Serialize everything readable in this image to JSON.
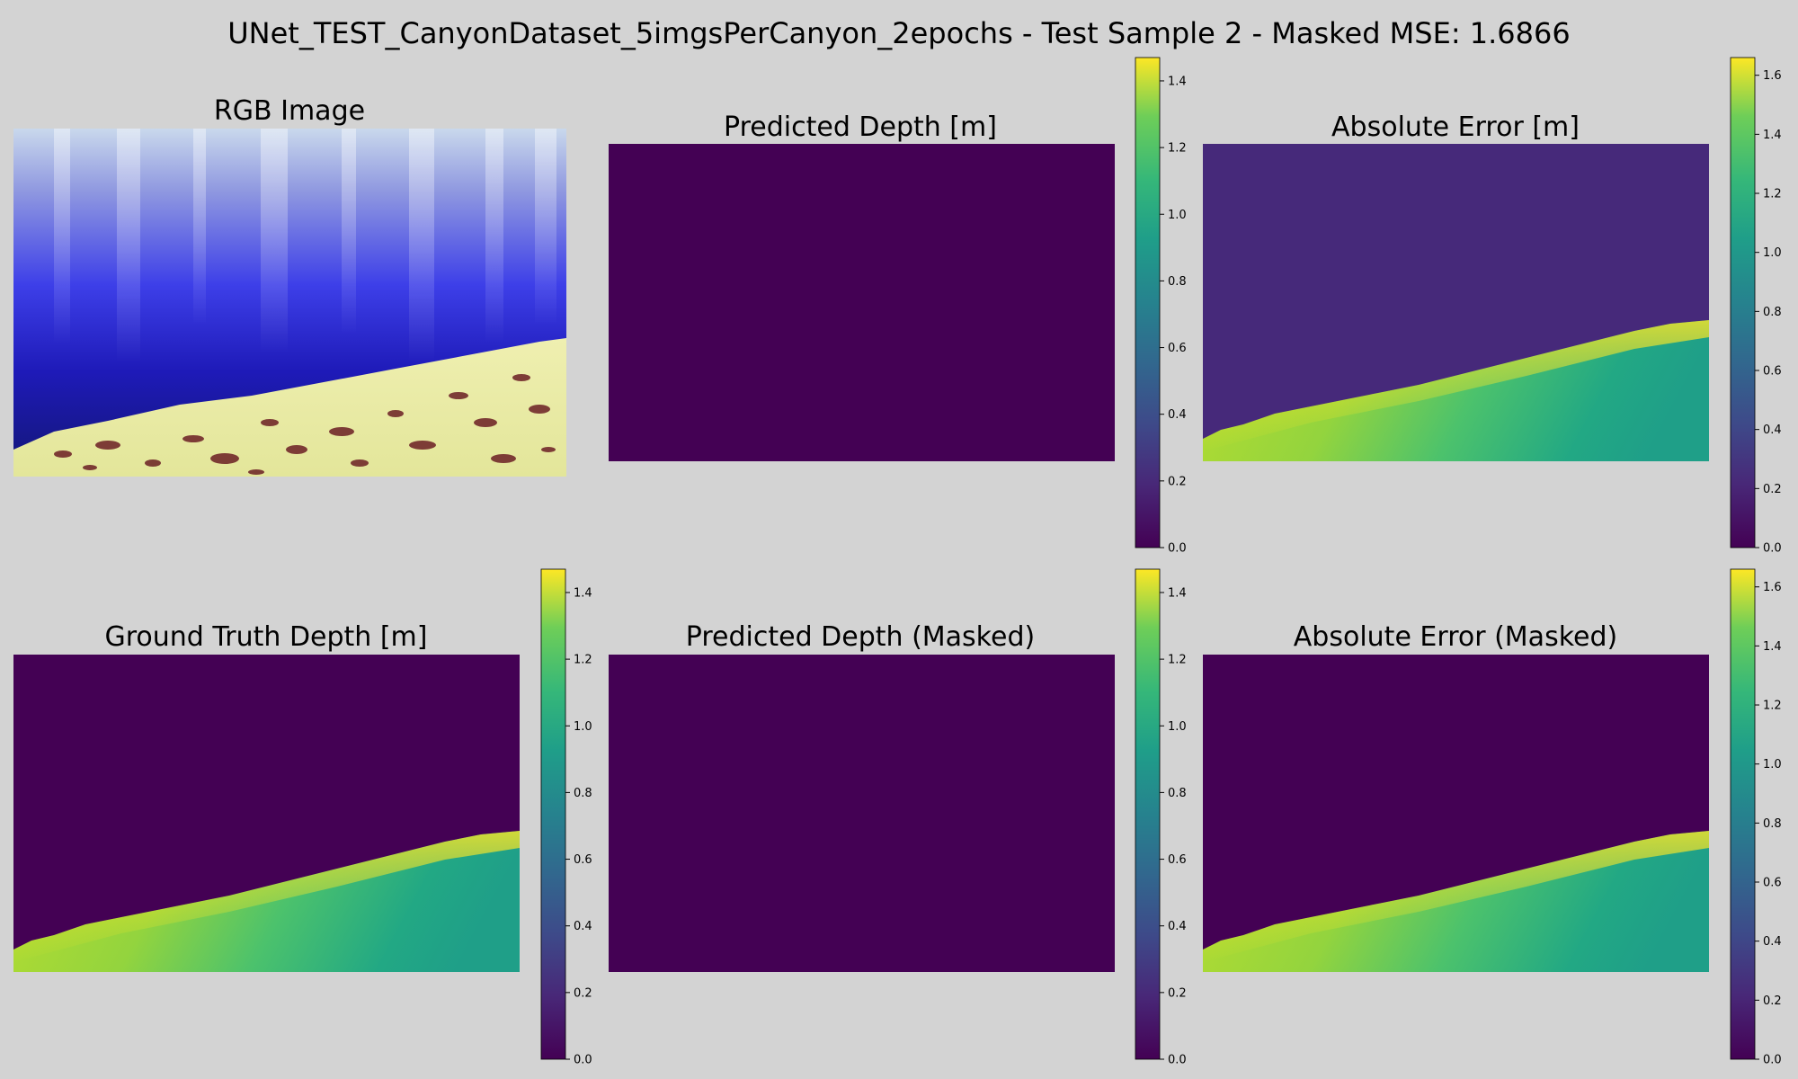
{
  "figure": {
    "suptitle": "UNet_TEST_CanyonDataset_5imgsPerCanyon_2epochs - Test Sample 2 - Masked MSE: 1.6866",
    "background": "#d3d3d3"
  },
  "chart_data": [
    {
      "type": "heatmap",
      "title": "RGB Image",
      "image": "rgb-underwater-canyon-photo",
      "colorbar": null
    },
    {
      "type": "heatmap",
      "title": "Predicted Depth [m]",
      "field": "constant-zero",
      "colormap": "viridis",
      "colorbar": {
        "range": [
          0,
          1.47
        ],
        "ticks": [
          "0.0",
          "0.2",
          "0.4",
          "0.6",
          "0.8",
          "1.0",
          "1.2",
          "1.4"
        ]
      }
    },
    {
      "type": "heatmap",
      "title": "Absolute Error [m]",
      "field": "error-full",
      "colormap": "viridis",
      "background_value": 0.27,
      "colorbar": {
        "range": [
          0,
          1.66
        ],
        "ticks": [
          "0.0",
          "0.2",
          "0.4",
          "0.6",
          "0.8",
          "1.0",
          "1.2",
          "1.4",
          "1.6"
        ]
      }
    },
    {
      "type": "heatmap",
      "title": "Ground Truth Depth [m]",
      "field": "seafloor-depth",
      "colormap": "viridis",
      "colorbar": {
        "range": [
          0,
          1.47
        ],
        "ticks": [
          "0.0",
          "0.2",
          "0.4",
          "0.6",
          "0.8",
          "1.0",
          "1.2",
          "1.4"
        ]
      }
    },
    {
      "type": "heatmap",
      "title": "Predicted Depth (Masked)",
      "field": "constant-zero",
      "colormap": "viridis",
      "colorbar": {
        "range": [
          0,
          1.47
        ],
        "ticks": [
          "0.0",
          "0.2",
          "0.4",
          "0.6",
          "0.8",
          "1.0",
          "1.2",
          "1.4"
        ]
      }
    },
    {
      "type": "heatmap",
      "title": "Absolute Error (Masked)",
      "field": "seafloor-depth",
      "colormap": "viridis",
      "colorbar": {
        "range": [
          0,
          1.66
        ],
        "ticks": [
          "0.0",
          "0.2",
          "0.4",
          "0.6",
          "0.8",
          "1.0",
          "1.2",
          "1.4",
          "1.6"
        ]
      }
    }
  ]
}
